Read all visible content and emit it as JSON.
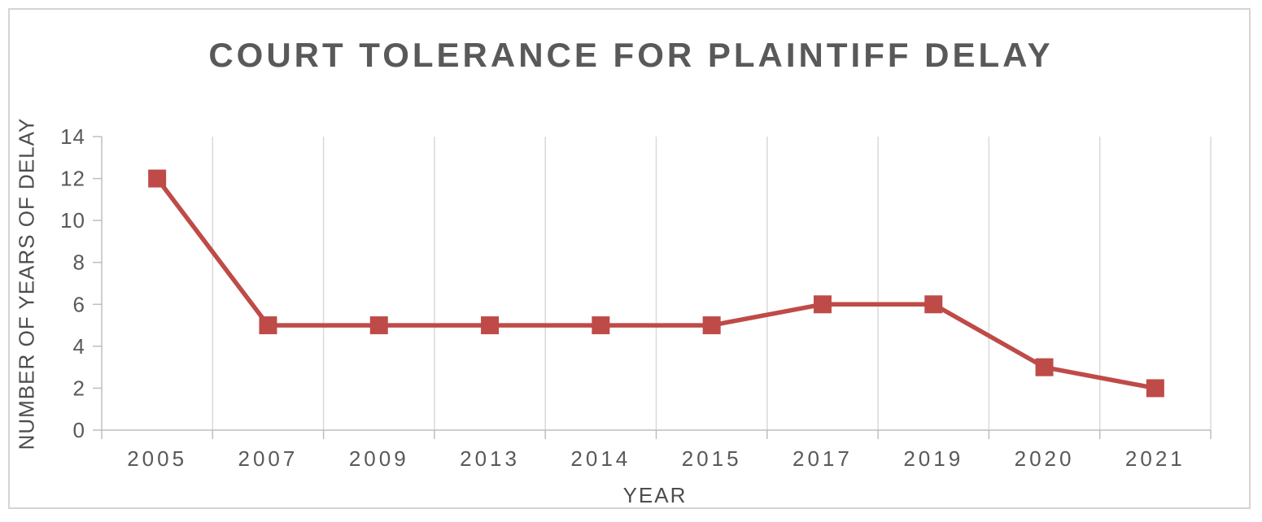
{
  "frame": {
    "background": "#ffffff",
    "border_color": "#d4d4d4"
  },
  "chart_data": {
    "type": "line",
    "title": "COURT TOLERANCE FOR PLAINTIFF DELAY",
    "categories": [
      "2005",
      "2007",
      "2009",
      "2013",
      "2014",
      "2015",
      "2017",
      "2019",
      "2020",
      "2021"
    ],
    "values": [
      12,
      5,
      5,
      5,
      5,
      5,
      6,
      6,
      3,
      2
    ],
    "xlabel": "YEAR",
    "ylabel": "NUMBER OF YEARS OF DELAY",
    "ylim": [
      0,
      14
    ],
    "yticks": [
      0,
      2,
      4,
      6,
      8,
      10,
      12,
      14
    ],
    "grid": "vertical-only",
    "legend": "none",
    "marker": "square",
    "line_color": "#be4b48",
    "axis_color": "#bfbfbf",
    "gridline_color": "#d9d9d9",
    "tick_text_color": "#595959",
    "title_color": "#595959"
  }
}
